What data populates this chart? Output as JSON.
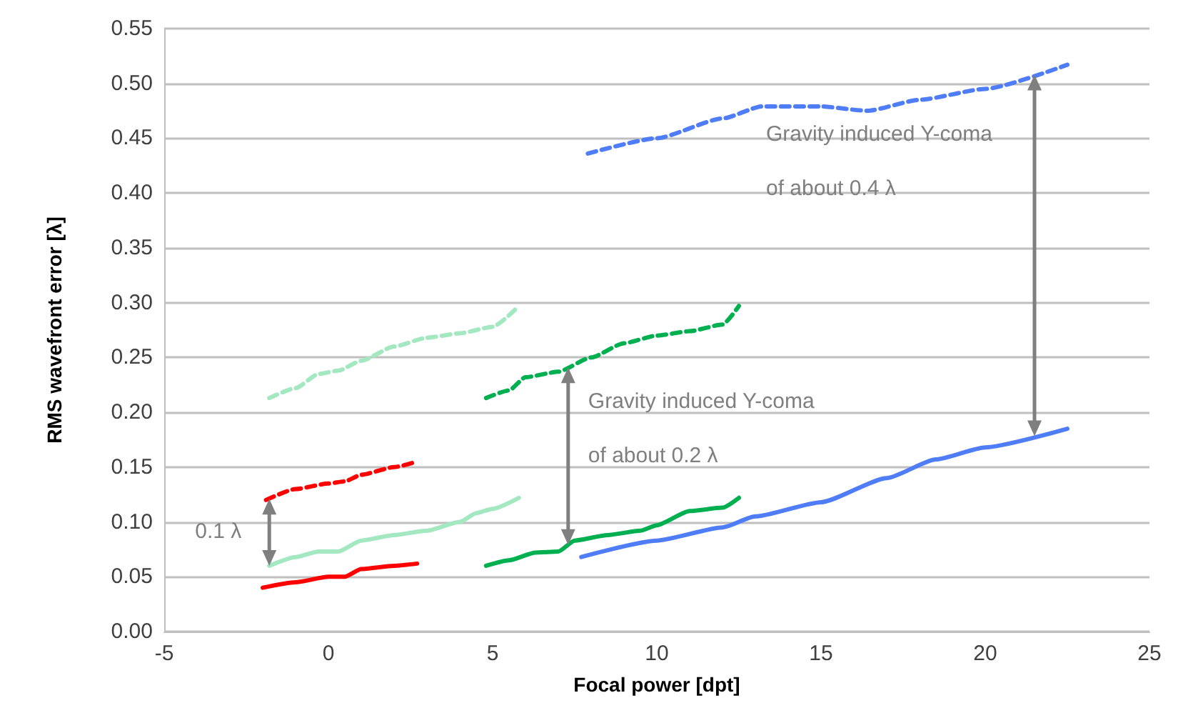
{
  "chart_data": {
    "type": "line",
    "xlabel": "Focal power [dpt]",
    "ylabel": "RMS wavefront error [λ]",
    "xlim": [
      -5,
      25
    ],
    "xticks": [
      -5,
      0,
      5,
      10,
      15,
      20,
      25
    ],
    "ylim": [
      0,
      0.55
    ],
    "yticks": [
      {
        "value": 0,
        "label": "0.00"
      },
      {
        "value": 0.05,
        "label": "0.05"
      },
      {
        "value": 0.1,
        "label": "0.10"
      },
      {
        "value": 0.15,
        "label": "0.15"
      },
      {
        "value": 0.2,
        "label": "0.20"
      },
      {
        "value": 0.25,
        "label": "0.25"
      },
      {
        "value": 0.3,
        "label": "0.30"
      },
      {
        "value": 0.35,
        "label": "0.35"
      },
      {
        "value": 0.4,
        "label": "0.40"
      },
      {
        "value": 0.45,
        "label": "0.45"
      },
      {
        "value": 0.5,
        "label": "0.50"
      },
      {
        "value": 0.55,
        "label": "0.55"
      }
    ],
    "grid": "y",
    "marker": "none",
    "series": [
      {
        "color": "#ff0000",
        "line_style": "solid",
        "x": [
          -2,
          -1,
          0,
          0.5,
          1,
          2,
          2.7
        ],
        "values": [
          0.04,
          0.045,
          0.05,
          0.05,
          0.057,
          0.06,
          0.062
        ]
      },
      {
        "color": "#ff0000",
        "line_style": "dashed",
        "x": [
          -1.9,
          -1,
          0,
          0.5,
          1,
          2,
          2.7
        ],
        "values": [
          0.12,
          0.13,
          0.135,
          0.137,
          0.143,
          0.15,
          0.155
        ]
      },
      {
        "color": "#a3e8c0",
        "line_style": "solid",
        "x": [
          -1.8,
          -1,
          -0.3,
          0.3,
          1,
          2,
          3,
          4,
          4.5,
          5,
          5.8
        ],
        "values": [
          0.06,
          0.068,
          0.073,
          0.073,
          0.083,
          0.088,
          0.092,
          0.1,
          0.108,
          0.112,
          0.122
        ]
      },
      {
        "color": "#a3e8c0",
        "line_style": "dashed",
        "x": [
          -1.8,
          -1,
          -0.3,
          0.3,
          1,
          2,
          3,
          4,
          5,
          5.8
        ],
        "values": [
          0.213,
          0.222,
          0.235,
          0.238,
          0.247,
          0.26,
          0.268,
          0.272,
          0.278,
          0.297
        ]
      },
      {
        "color": "#00b050",
        "line_style": "solid",
        "x": [
          4.8,
          5.5,
          6.3,
          7,
          7.5,
          8.5,
          9.5,
          10,
          11,
          12,
          12.5
        ],
        "values": [
          0.06,
          0.065,
          0.072,
          0.073,
          0.083,
          0.088,
          0.092,
          0.097,
          0.11,
          0.113,
          0.122
        ]
      },
      {
        "color": "#00b050",
        "line_style": "dashed",
        "x": [
          4.8,
          5.5,
          6,
          7,
          8,
          9,
          10,
          11,
          12,
          12.5
        ],
        "values": [
          0.213,
          0.22,
          0.232,
          0.237,
          0.25,
          0.263,
          0.27,
          0.274,
          0.28,
          0.297
        ]
      },
      {
        "color": "#4f7cf7",
        "line_style": "solid",
        "x": [
          7.7,
          10,
          12,
          13,
          15,
          17,
          18.5,
          20,
          22.5
        ],
        "values": [
          0.068,
          0.083,
          0.095,
          0.105,
          0.118,
          0.14,
          0.157,
          0.168,
          0.185
        ]
      },
      {
        "color": "#4f7cf7",
        "line_style": "dashed",
        "x": [
          7.9,
          10,
          12,
          13.2,
          15,
          16.4,
          18,
          20,
          22.5
        ],
        "values": [
          0.436,
          0.45,
          0.468,
          0.479,
          0.479,
          0.475,
          0.485,
          0.495,
          0.517
        ]
      }
    ],
    "annotations": [
      {
        "text": "0.1 λ",
        "x": -1.8,
        "y": 0.06
      },
      {
        "text": "Gravity induced Y-coma",
        "x": 7.3,
        "y": 0.241
      },
      "of about 0.2 λ",
      {
        "text": "Gravity induced Y-coma",
        "x": 21.5,
        "y": 0.508
      },
      "of about 0.4 λ"
    ]
  }
}
